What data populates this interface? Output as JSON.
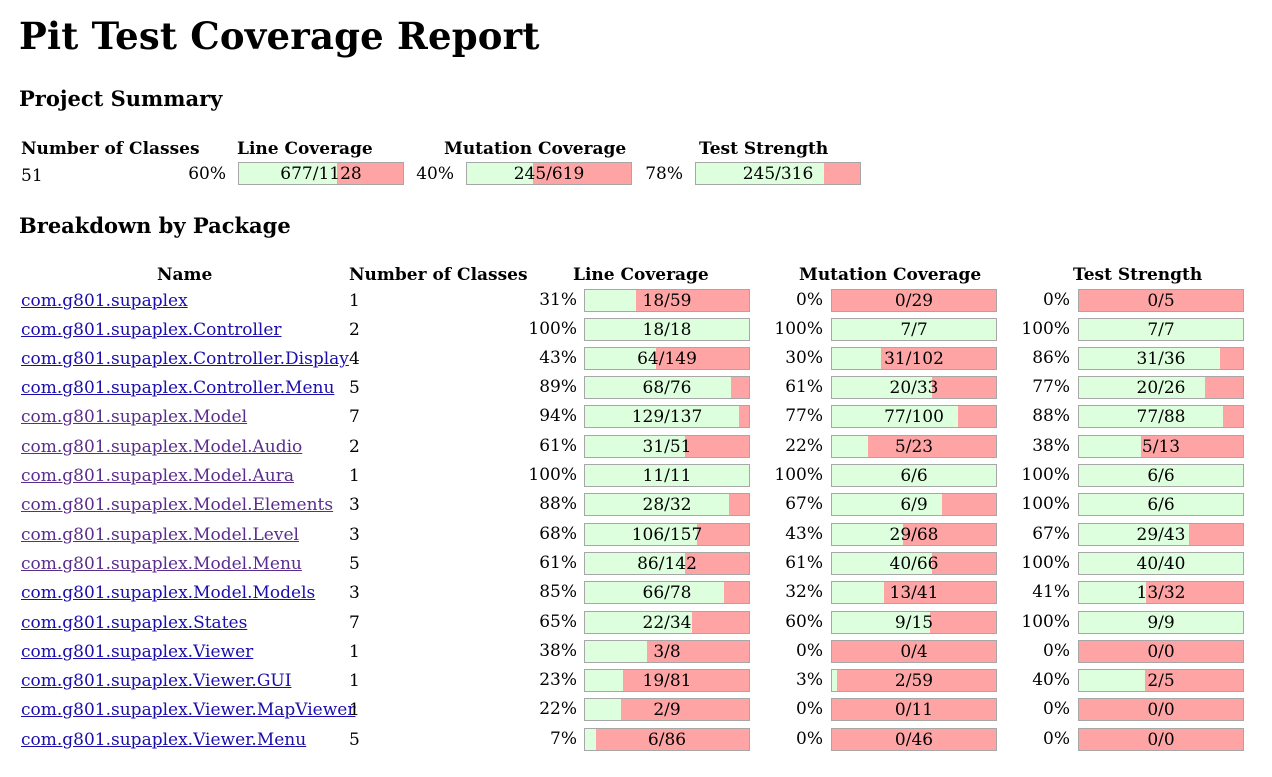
{
  "title": "Pit Test Coverage Report",
  "summary": {
    "heading": "Project Summary",
    "headers": [
      "Number of Classes",
      "Line Coverage",
      "Mutation Coverage",
      "Test Strength"
    ],
    "classes": "51",
    "line": {
      "pct": "60%",
      "text": "677/1128",
      "frac": 0.6
    },
    "mutation": {
      "pct": "40%",
      "text": "245/619",
      "frac": 0.4
    },
    "strength": {
      "pct": "78%",
      "text": "245/316",
      "frac": 0.78
    }
  },
  "breakdown": {
    "heading": "Breakdown by Package",
    "headers": [
      "Name",
      "Number of Classes",
      "Line Coverage",
      "Mutation Coverage",
      "Test Strength"
    ],
    "rows": [
      {
        "name": "com.g801.supaplex",
        "classes": "1",
        "line": {
          "pct": "31%",
          "text": "18/59",
          "frac": 0.31
        },
        "mutation": {
          "pct": "0%",
          "text": "0/29",
          "frac": 0.0
        },
        "strength": {
          "pct": "0%",
          "text": "0/5",
          "frac": 0.0
        }
      },
      {
        "name": "com.g801.supaplex.Controller",
        "classes": "2",
        "line": {
          "pct": "100%",
          "text": "18/18",
          "frac": 1.0
        },
        "mutation": {
          "pct": "100%",
          "text": "7/7",
          "frac": 1.0
        },
        "strength": {
          "pct": "100%",
          "text": "7/7",
          "frac": 1.0
        }
      },
      {
        "name": "com.g801.supaplex.Controller.Display",
        "classes": "4",
        "line": {
          "pct": "43%",
          "text": "64/149",
          "frac": 0.43
        },
        "mutation": {
          "pct": "30%",
          "text": "31/102",
          "frac": 0.3
        },
        "strength": {
          "pct": "86%",
          "text": "31/36",
          "frac": 0.86
        }
      },
      {
        "name": "com.g801.supaplex.Controller.Menu",
        "classes": "5",
        "line": {
          "pct": "89%",
          "text": "68/76",
          "frac": 0.89
        },
        "mutation": {
          "pct": "61%",
          "text": "20/33",
          "frac": 0.61
        },
        "strength": {
          "pct": "77%",
          "text": "20/26",
          "frac": 0.77
        }
      },
      {
        "name": "com.g801.supaplex.Model",
        "classes": "7",
        "line": {
          "pct": "94%",
          "text": "129/137",
          "frac": 0.94
        },
        "mutation": {
          "pct": "77%",
          "text": "77/100",
          "frac": 0.77
        },
        "strength": {
          "pct": "88%",
          "text": "77/88",
          "frac": 0.88
        }
      },
      {
        "name": "com.g801.supaplex.Model.Audio",
        "classes": "2",
        "line": {
          "pct": "61%",
          "text": "31/51",
          "frac": 0.61
        },
        "mutation": {
          "pct": "22%",
          "text": "5/23",
          "frac": 0.22
        },
        "strength": {
          "pct": "38%",
          "text": "5/13",
          "frac": 0.38
        }
      },
      {
        "name": "com.g801.supaplex.Model.Aura",
        "classes": "1",
        "line": {
          "pct": "100%",
          "text": "11/11",
          "frac": 1.0
        },
        "mutation": {
          "pct": "100%",
          "text": "6/6",
          "frac": 1.0
        },
        "strength": {
          "pct": "100%",
          "text": "6/6",
          "frac": 1.0
        }
      },
      {
        "name": "com.g801.supaplex.Model.Elements",
        "classes": "3",
        "line": {
          "pct": "88%",
          "text": "28/32",
          "frac": 0.88
        },
        "mutation": {
          "pct": "67%",
          "text": "6/9",
          "frac": 0.67
        },
        "strength": {
          "pct": "100%",
          "text": "6/6",
          "frac": 1.0
        }
      },
      {
        "name": "com.g801.supaplex.Model.Level",
        "classes": "3",
        "line": {
          "pct": "68%",
          "text": "106/157",
          "frac": 0.68
        },
        "mutation": {
          "pct": "43%",
          "text": "29/68",
          "frac": 0.43
        },
        "strength": {
          "pct": "67%",
          "text": "29/43",
          "frac": 0.67
        }
      },
      {
        "name": "com.g801.supaplex.Model.Menu",
        "classes": "5",
        "line": {
          "pct": "61%",
          "text": "86/142",
          "frac": 0.61
        },
        "mutation": {
          "pct": "61%",
          "text": "40/66",
          "frac": 0.61
        },
        "strength": {
          "pct": "100%",
          "text": "40/40",
          "frac": 1.0
        }
      },
      {
        "name": "com.g801.supaplex.Model.Models",
        "classes": "3",
        "line": {
          "pct": "85%",
          "text": "66/78",
          "frac": 0.85
        },
        "mutation": {
          "pct": "32%",
          "text": "13/41",
          "frac": 0.32
        },
        "strength": {
          "pct": "41%",
          "text": "13/32",
          "frac": 0.41
        }
      },
      {
        "name": "com.g801.supaplex.States",
        "classes": "7",
        "line": {
          "pct": "65%",
          "text": "22/34",
          "frac": 0.65
        },
        "mutation": {
          "pct": "60%",
          "text": "9/15",
          "frac": 0.6
        },
        "strength": {
          "pct": "100%",
          "text": "9/9",
          "frac": 1.0
        }
      },
      {
        "name": "com.g801.supaplex.Viewer",
        "classes": "1",
        "line": {
          "pct": "38%",
          "text": "3/8",
          "frac": 0.38
        },
        "mutation": {
          "pct": "0%",
          "text": "0/4",
          "frac": 0.0
        },
        "strength": {
          "pct": "0%",
          "text": "0/0",
          "frac": 0.0
        }
      },
      {
        "name": "com.g801.supaplex.Viewer.GUI",
        "classes": "1",
        "line": {
          "pct": "23%",
          "text": "19/81",
          "frac": 0.23
        },
        "mutation": {
          "pct": "3%",
          "text": "2/59",
          "frac": 0.03
        },
        "strength": {
          "pct": "40%",
          "text": "2/5",
          "frac": 0.4
        }
      },
      {
        "name": "com.g801.supaplex.Viewer.MapViewer",
        "classes": "1",
        "line": {
          "pct": "22%",
          "text": "2/9",
          "frac": 0.22
        },
        "mutation": {
          "pct": "0%",
          "text": "0/11",
          "frac": 0.0
        },
        "strength": {
          "pct": "0%",
          "text": "0/0",
          "frac": 0.0
        }
      },
      {
        "name": "com.g801.supaplex.Viewer.Menu",
        "classes": "5",
        "line": {
          "pct": "7%",
          "text": "6/86",
          "frac": 0.07
        },
        "mutation": {
          "pct": "0%",
          "text": "0/46",
          "frac": 0.0
        },
        "strength": {
          "pct": "0%",
          "text": "0/0",
          "frac": 0.0
        }
      }
    ]
  },
  "colors": {
    "covered": "#ddffdd",
    "uncovered": "#ffa4a4",
    "link": "#1a0dab",
    "visited": "#5a2d8c"
  }
}
